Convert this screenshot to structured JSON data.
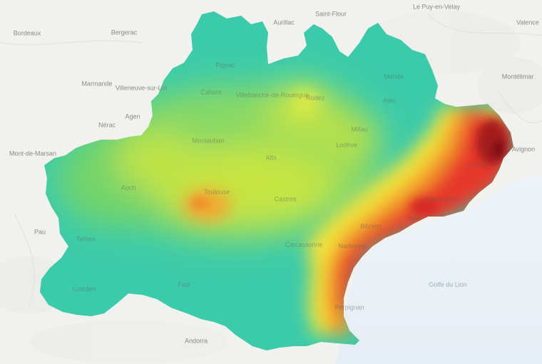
{
  "map": {
    "region": "Occitanie",
    "layer": "heat-gradient",
    "legend_colors": [
      "#1fc2a8",
      "#7fd860",
      "#e8f030",
      "#f5a228",
      "#e6302a",
      "#8a1218"
    ],
    "labels": {
      "bordeaux": "Bordeaux",
      "bergerac": "Bergerac",
      "marmande": "Marmande",
      "villeneuve": "Villeneuve-sur-Lot",
      "agen": "Agen",
      "nerac": "Nérac",
      "mont_de_marsan": "Mont-de-Marsan",
      "pau": "Pau",
      "aurillac": "Aurillac",
      "saint_flour": "Saint-Flour",
      "le_puy": "Le Puy-en-Velay",
      "valence": "Valence",
      "montelimar": "Montélimar",
      "cahors": "Cahors",
      "figeac": "Figeac",
      "villefranche": "Villefranche-de-Rouergue",
      "rodez": "Rodez",
      "mende": "Mende",
      "ales": "Alès",
      "millau": "Millau",
      "montauban": "Montauban",
      "albi": "Albi",
      "lodeve": "Lodève",
      "nimes": "Nîmes",
      "avignon": "Avignon",
      "montpellier": "Montpellier",
      "auch": "Auch",
      "toulouse": "Toulouse",
      "castres": "Castres",
      "beziers": "Béziers",
      "sete": "Sète",
      "tarbes": "Tarbes",
      "carcassonne": "Carcassonne",
      "narbonne": "Narbonne",
      "perpignan": "Perpignan",
      "andorra": "Andorra",
      "lourdes": "Lourdes",
      "foix": "Foix",
      "golfe": "Golfe du Lion"
    }
  }
}
